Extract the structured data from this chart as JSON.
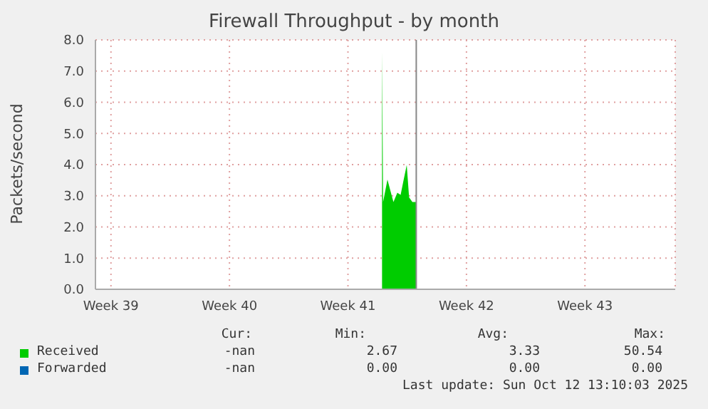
{
  "chart_data": {
    "type": "area",
    "title": "Firewall Throughput - by month",
    "ylabel": "Packets/second",
    "xlim": [
      "2025-09-21T02:00",
      "2025-10-25T08:00"
    ],
    "xticks": [
      {
        "value": "2025-09-22",
        "label": "Week 39"
      },
      {
        "value": "2025-09-29",
        "label": "Week 40"
      },
      {
        "value": "2025-10-06",
        "label": "Week 41"
      },
      {
        "value": "2025-10-13",
        "label": "Week 42"
      },
      {
        "value": "2025-10-20",
        "label": "Week 43"
      }
    ],
    "ylim": [
      0,
      8
    ],
    "yticks": [
      {
        "value": 0,
        "label": "0.0"
      },
      {
        "value": 1,
        "label": "1.0"
      },
      {
        "value": 2,
        "label": "2.0"
      },
      {
        "value": 3,
        "label": "3.0"
      },
      {
        "value": 4,
        "label": "4.0"
      },
      {
        "value": 5,
        "label": "5.0"
      },
      {
        "value": 6,
        "label": "6.0"
      },
      {
        "value": 7,
        "label": "7.0"
      },
      {
        "value": 8,
        "label": "8.0"
      }
    ],
    "series": [
      {
        "name": "Received",
        "color": "#00cc00",
        "x": [
          "2025-10-08T00:20",
          "2025-10-08T01:50",
          "2025-10-08T08:00",
          "2025-10-08T12:00",
          "2025-10-08T16:30",
          "2025-10-08T22:00",
          "2025-10-09T02:40",
          "2025-10-09T06:40",
          "2025-10-09T11:20",
          "2025-10-09T14:40",
          "2025-10-09T19:20",
          "2025-10-10T00:50"
        ],
        "values": [
          7.6,
          2.8,
          3.52,
          3.18,
          2.8,
          3.1,
          3.03,
          3.48,
          3.99,
          2.95,
          2.8,
          2.8
        ]
      },
      {
        "name": "Forwarded",
        "color": "#0066b3"
      }
    ],
    "ref_lines": [
      {
        "axis": "x",
        "value": "2025-10-10T00:50",
        "color": "#888888"
      }
    ],
    "grid": true,
    "legend": "bottom",
    "annotations": [
      "Cur:",
      "Min:",
      "Avg:",
      "Max:",
      "-nan",
      "2.67",
      "3.33",
      "50.54",
      "-nan",
      "0.00",
      "0.00",
      "0.00",
      "Last update: Sun Oct 12 13:10:03 2025"
    ]
  }
}
